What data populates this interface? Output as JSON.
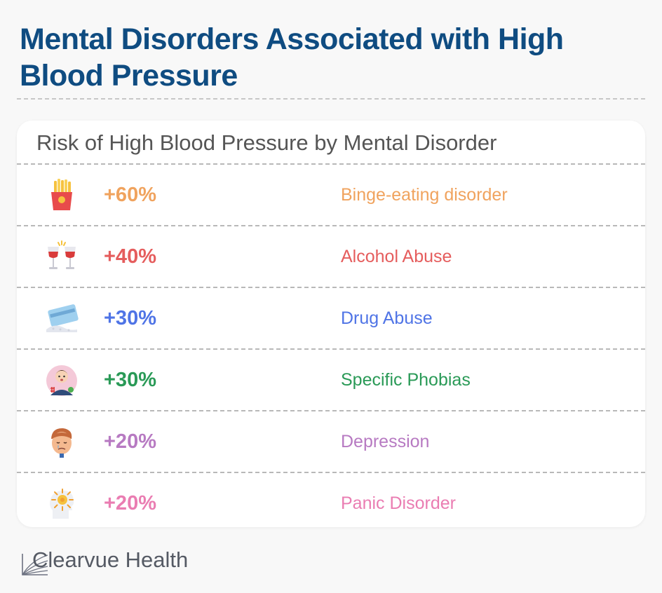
{
  "title": "Mental Disorders Associated with High Blood Pressure",
  "card": {
    "title": "Risk of High Blood Pressure by Mental Disorder",
    "rows": [
      {
        "icon": "french-fries-icon",
        "percent": "+60%",
        "label": "Binge-eating disorder",
        "color": "#f0a35e"
      },
      {
        "icon": "wine-glasses-icon",
        "percent": "+40%",
        "label": "Alcohol Abuse",
        "color": "#e55d5d"
      },
      {
        "icon": "card-powder-icon",
        "percent": "+30%",
        "label": "Drug Abuse",
        "color": "#4f74e6"
      },
      {
        "icon": "scared-person-icon",
        "percent": "+30%",
        "label": "Specific Phobias",
        "color": "#2a9a57"
      },
      {
        "icon": "sad-face-icon",
        "percent": "+20%",
        "label": "Depression",
        "color": "#b77ac2"
      },
      {
        "icon": "panic-head-icon",
        "percent": "+20%",
        "label": "Panic Disorder",
        "color": "#ea7db2"
      }
    ]
  },
  "brand": {
    "name": "Clearvue Health",
    "logo_icon": "clearvue-logo-icon"
  }
}
